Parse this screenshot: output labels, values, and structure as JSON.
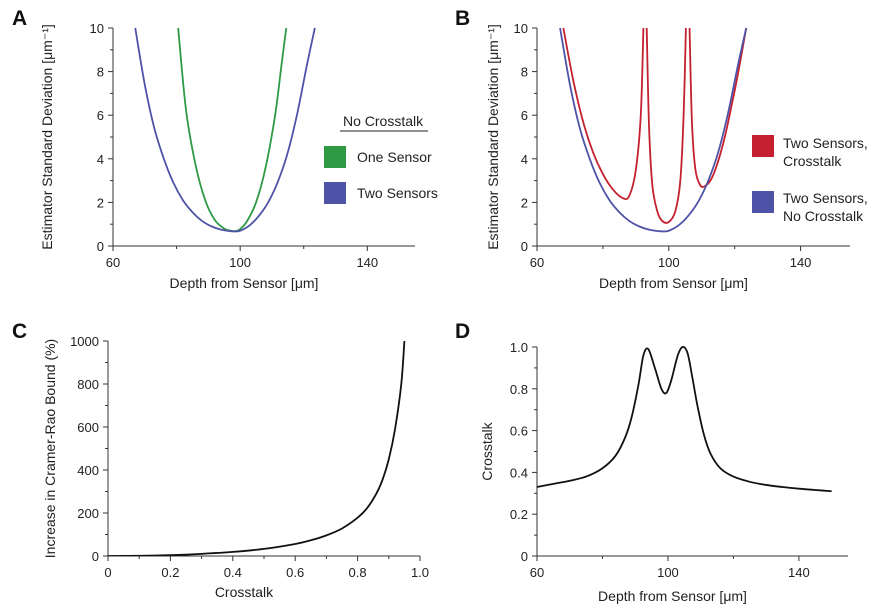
{
  "chart_data": [
    {
      "panel": "A",
      "type": "line",
      "xlabel": "Depth from Sensor [μm]",
      "ylabel": "Estimator Standard Deviation [μm⁻¹]",
      "xlim": [
        60,
        155
      ],
      "ylim": [
        0,
        10
      ],
      "xticks": [
        "60",
        "100",
        "140"
      ],
      "yticks": [
        "0",
        "2",
        "4",
        "6",
        "8",
        "10"
      ],
      "legend_title": "No Crosstalk",
      "legend_placement": "right",
      "series": [
        {
          "name": "One Sensor",
          "color": "#2e9a44",
          "x": [
            80.5,
            83,
            86,
            89,
            92,
            95,
            97,
            98,
            99,
            100,
            102,
            105,
            108,
            111,
            113,
            114.5
          ],
          "y": [
            10,
            6.2,
            3.7,
            2.1,
            1.2,
            0.8,
            0.7,
            0.68,
            0.7,
            0.78,
            1.1,
            2.0,
            3.6,
            6.0,
            8.3,
            10
          ]
        },
        {
          "name": "Two Sensors",
          "color": "#4e53a8",
          "x": [
            67,
            70,
            73,
            76,
            79,
            82,
            85,
            88,
            91,
            94,
            97,
            98.5,
            100,
            103,
            106,
            109,
            112,
            115,
            118,
            121,
            123.5
          ],
          "y": [
            10,
            7.4,
            5.4,
            4.0,
            2.9,
            2.1,
            1.55,
            1.15,
            0.9,
            0.75,
            0.68,
            0.67,
            0.7,
            0.95,
            1.4,
            2.05,
            3.0,
            4.3,
            6.1,
            8.3,
            10
          ]
        }
      ]
    },
    {
      "panel": "B",
      "type": "line",
      "xlabel": "Depth from Sensor [μm]",
      "ylabel": "Estimator Standard Deviation [μm⁻¹]",
      "xlim": [
        60,
        155
      ],
      "ylim": [
        0,
        10
      ],
      "xticks": [
        "60",
        "100",
        "140"
      ],
      "yticks": [
        "0",
        "2",
        "4",
        "6",
        "8",
        "10"
      ],
      "legend_placement": "right",
      "series": [
        {
          "name": "Two Sensors, Crosstalk",
          "color": "#c4202f",
          "segments": [
            {
              "x": [
                68,
                71,
                74,
                77,
                80,
                83,
                86,
                88,
                90,
                91.5,
                92.3
              ],
              "y": [
                10,
                7.6,
                5.7,
                4.3,
                3.3,
                2.6,
                2.2,
                2.3,
                3.5,
                6.0,
                10
              ]
            },
            {
              "x": [
                93.3,
                94,
                95,
                96.5,
                98,
                100,
                102,
                103.5,
                104.5,
                105.2
              ],
              "y": [
                10,
                5.5,
                2.8,
                1.6,
                1.15,
                1.1,
                1.6,
                3.0,
                6.0,
                10
              ]
            },
            {
              "x": [
                106.3,
                107,
                108,
                109.5,
                111,
                113,
                115,
                117,
                119,
                121,
                123.5
              ],
              "y": [
                10,
                5.8,
                3.6,
                2.8,
                2.75,
                3.1,
                3.9,
                5.0,
                6.4,
                7.9,
                10
              ]
            }
          ]
        },
        {
          "name": "Two Sensors, No Crosstalk",
          "color": "#4e53a8",
          "x": [
            67,
            70,
            73,
            76,
            79,
            82,
            85,
            88,
            91,
            94,
            97,
            98.5,
            100,
            103,
            106,
            109,
            112,
            115,
            118,
            121,
            123.5
          ],
          "y": [
            10,
            7.4,
            5.4,
            4.0,
            2.9,
            2.1,
            1.55,
            1.15,
            0.9,
            0.75,
            0.68,
            0.67,
            0.7,
            0.95,
            1.4,
            2.05,
            3.0,
            4.3,
            6.1,
            8.3,
            10
          ]
        }
      ]
    },
    {
      "panel": "C",
      "type": "line",
      "xlabel": "Crosstalk",
      "ylabel": "Increase in Cramer-Rao Bound (%)",
      "xlim": [
        0,
        1.0
      ],
      "ylim": [
        0,
        1000
      ],
      "xticks": [
        "0",
        "0.2",
        "0.4",
        "0.6",
        "0.8",
        "1.0"
      ],
      "yticks": [
        "0",
        "200",
        "400",
        "600",
        "800",
        "1000"
      ],
      "series": [
        {
          "color": "#111111",
          "x": [
            0,
            0.1,
            0.2,
            0.3,
            0.4,
            0.5,
            0.6,
            0.65,
            0.7,
            0.75,
            0.8,
            0.83,
            0.86,
            0.88,
            0.9,
            0.92,
            0.94,
            0.95
          ],
          "y": [
            0,
            1,
            4,
            10,
            19,
            33,
            56,
            73,
            96,
            128,
            178,
            222,
            290,
            355,
            450,
            590,
            800,
            1000
          ]
        }
      ]
    },
    {
      "panel": "D",
      "type": "line",
      "xlabel": "Depth from Sensor [μm]",
      "ylabel": "Crosstalk",
      "xlim": [
        60,
        155
      ],
      "ylim": [
        0,
        1.0
      ],
      "xticks": [
        "60",
        "100",
        "140"
      ],
      "yticks": [
        "0",
        "0.2",
        "0.4",
        "0.6",
        "0.8",
        "1.0"
      ],
      "series": [
        {
          "color": "#111111",
          "x": [
            60,
            65,
            70,
            75,
            80,
            84,
            87,
            89,
            91,
            92.5,
            94,
            96,
            98,
            99.5,
            101,
            103,
            104.5,
            106,
            107.5,
            109,
            111,
            113,
            116,
            120,
            125,
            130,
            135,
            140,
            145,
            150
          ],
          "y": [
            0.33,
            0.345,
            0.36,
            0.38,
            0.42,
            0.48,
            0.57,
            0.67,
            0.82,
            0.96,
            0.99,
            0.9,
            0.8,
            0.78,
            0.84,
            0.96,
            1.0,
            0.97,
            0.85,
            0.72,
            0.58,
            0.49,
            0.42,
            0.38,
            0.355,
            0.34,
            0.33,
            0.322,
            0.316,
            0.31
          ]
        }
      ]
    }
  ]
}
